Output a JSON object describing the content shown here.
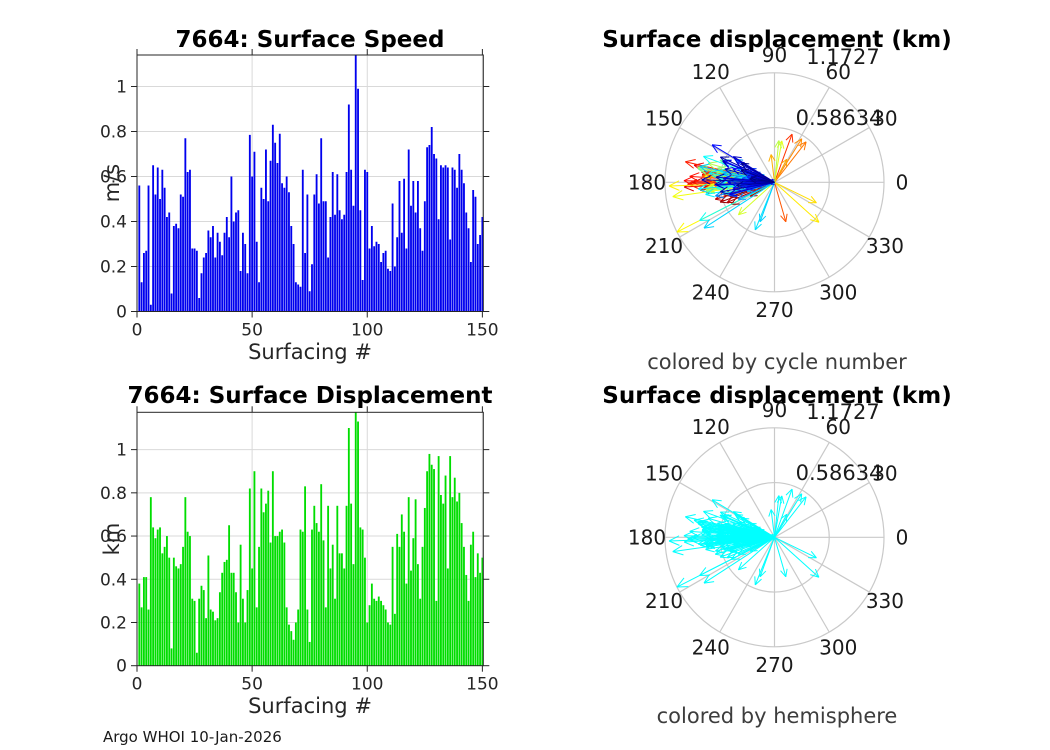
{
  "footer": "Argo WHOI 10-Jan-2026",
  "colors": {
    "speed_bar": "#0000ee",
    "displacement_bar": "#00dd00",
    "hemisphere_arrow": "#00ffff",
    "bar_grid": "#d9d9d9",
    "polar_grid": "#c9c9c9",
    "axis": "#262626",
    "title_text": "#000000",
    "caption_text": "#3d3d3d"
  },
  "chart_data": [
    {
      "id": "surface-speed",
      "type": "bar",
      "title": "7664: Surface Speed",
      "xlabel": "Surfacing #",
      "ylabel": "m/s",
      "xlim": [
        0,
        150.4
      ],
      "ylim": [
        0,
        1.14
      ],
      "xticks": [
        0,
        50,
        100,
        150
      ],
      "xtick_labels": [
        "0",
        "50",
        "100",
        "150"
      ],
      "yticks": [
        0,
        0.2,
        0.4,
        0.6,
        0.8,
        1
      ],
      "ytick_labels": [
        "0",
        "0.2",
        "0.4",
        "0.6",
        "0.8",
        "1"
      ],
      "grid": true,
      "values": [
        0.56,
        0.13,
        0.26,
        0.27,
        0.56,
        0.03,
        0.65,
        0.52,
        0.64,
        0.5,
        0.63,
        0.55,
        0.42,
        0.44,
        0.08,
        0.38,
        0.39,
        0.37,
        0.52,
        0.51,
        0.77,
        0.62,
        0.63,
        0.28,
        0.28,
        0.27,
        0.06,
        0.17,
        0.24,
        0.26,
        0.36,
        0.33,
        0.38,
        0.24,
        0.35,
        0.31,
        0.25,
        0.35,
        0.42,
        0.33,
        0.6,
        0.4,
        0.44,
        0.45,
        0.18,
        0.35,
        0.3,
        0.17,
        0.785,
        0.6,
        0.71,
        0.31,
        0.13,
        0.55,
        0.5,
        0.72,
        0.49,
        0.67,
        0.83,
        0.75,
        0.66,
        0.79,
        0.57,
        0.55,
        0.6,
        0.53,
        0.38,
        0.3,
        0.13,
        0.12,
        0.11,
        0.63,
        0.26,
        0.52,
        0.09,
        0.21,
        0.52,
        0.61,
        0.48,
        0.77,
        0.49,
        0.49,
        0.24,
        0.42,
        0.62,
        0.43,
        0.61,
        0.45,
        0.41,
        0.43,
        0.62,
        0.92,
        0.63,
        0.47,
        1.14,
        0.99,
        0.45,
        0.14,
        0.63,
        0.62,
        0.28,
        0.38,
        0.29,
        0.31,
        0.3,
        0.22,
        0.26,
        0.27,
        0.19,
        0.18,
        0.48,
        0.2,
        0.33,
        0.58,
        0.35,
        0.59,
        0.28,
        0.72,
        0.47,
        0.58,
        0.44,
        0.58,
        0.37,
        0.27,
        0.49,
        0.73,
        0.74,
        0.82,
        0.7,
        0.68,
        0.41,
        0.65,
        0.64,
        0.65,
        0.64,
        0.32,
        0.64,
        0.63,
        0.55,
        0.7,
        0.63,
        0.57,
        0.44,
        0.37,
        0.22,
        0.54,
        0.51,
        0.3,
        0.34,
        0.42
      ]
    },
    {
      "id": "surface-displacement",
      "type": "bar",
      "title": "7664: Surface Displacement",
      "xlabel": "Surfacing #",
      "ylabel": "km",
      "xlim": [
        0,
        150.4
      ],
      "ylim": [
        0,
        1.1727
      ],
      "xticks": [
        0,
        50,
        100,
        150
      ],
      "xtick_labels": [
        "0",
        "50",
        "100",
        "150"
      ],
      "yticks": [
        0,
        0.2,
        0.4,
        0.6,
        0.8,
        1
      ],
      "ytick_labels": [
        "0",
        "0.2",
        "0.4",
        "0.6",
        "0.8",
        "1"
      ],
      "grid": true,
      "values": [
        0.38,
        0.27,
        0.41,
        0.41,
        0.26,
        0.78,
        0.64,
        0.59,
        0.63,
        0.64,
        0.52,
        0.55,
        0.6,
        0.5,
        0.08,
        0.5,
        0.46,
        0.45,
        0.47,
        0.55,
        0.78,
        0.62,
        0.6,
        0.31,
        0.3,
        0.06,
        0.31,
        0.37,
        0.35,
        0.22,
        0.51,
        0.26,
        0.25,
        0.21,
        0.22,
        0.34,
        0.43,
        0.48,
        0.49,
        0.65,
        0.43,
        0.43,
        0.34,
        0.2,
        0.56,
        0.31,
        0.2,
        0.35,
        0.82,
        0.45,
        0.9,
        0.27,
        0.55,
        0.82,
        0.71,
        0.75,
        0.81,
        0.57,
        0.9,
        0.6,
        0.6,
        0.62,
        0.63,
        0.57,
        0.27,
        0.19,
        0.16,
        0.12,
        0.2,
        0.26,
        0.63,
        0.62,
        0.83,
        0.26,
        0.11,
        0.63,
        0.74,
        0.66,
        0.62,
        0.84,
        0.58,
        0.27,
        0.74,
        0.45,
        0.56,
        0.31,
        0.74,
        0.52,
        0.52,
        0.45,
        0.74,
        1.1,
        0.75,
        0.47,
        1.1727,
        1.13,
        0.64,
        0.63,
        0.5,
        0.2,
        0.28,
        0.38,
        0.31,
        0.3,
        0.32,
        0.3,
        0.28,
        0.26,
        0.2,
        0.19,
        0.55,
        0.24,
        0.61,
        0.55,
        0.7,
        0.62,
        0.38,
        0.78,
        0.44,
        0.59,
        0.77,
        0.47,
        0.31,
        0.55,
        0.73,
        0.9,
        0.98,
        0.93,
        0.91,
        0.3,
        0.97,
        0.79,
        0.75,
        0.88,
        0.45,
        0.97,
        0.78,
        0.87,
        0.76,
        0.8,
        0.66,
        0.55,
        0.42,
        0.3,
        0.56,
        0.62,
        0.41,
        0.52,
        0.43,
        0.5
      ]
    },
    {
      "id": "surface-displacement-polar-by-cycle",
      "type": "scatter",
      "projection": "polar-vectors",
      "title": "Surface displacement (km)",
      "caption": "colored by cycle number",
      "color_by": "cycle number",
      "colormap": "jet",
      "rlim": [
        0,
        1.1727
      ],
      "r_ticks": [
        0.58634,
        1.1727
      ],
      "r_tick_labels": [
        "0.58634",
        "1.1727"
      ],
      "theta_tick_labels": [
        "0",
        "30",
        "60",
        "90",
        "120",
        "150",
        "180",
        "210",
        "240",
        "270",
        "300",
        "330"
      ],
      "angles_deg": [
        160,
        172,
        150,
        185,
        168,
        178,
        155,
        190,
        175,
        182,
        148,
        165,
        158,
        195,
        170,
        180,
        152,
        188,
        162,
        176,
        149,
        183,
        157,
        192,
        169,
        179,
        151,
        186,
        173,
        181,
        196,
        166,
        154,
        189,
        171,
        184,
        159,
        177,
        150,
        193,
        205,
        174,
        163,
        187,
        170,
        198,
        156,
        181,
        168,
        250,
        213,
        178,
        248,
        185,
        172,
        190,
        160,
        182,
        207,
        175,
        168,
        186,
        179,
        192,
        165,
        183,
        171,
        188,
        176,
        181,
        158,
        184,
        170,
        190,
        177,
        166,
        187,
        173,
        182,
        169,
        178,
        191,
        164,
        84,
        180,
        174,
        186,
        222,
        172,
        80,
        185,
        188,
        175,
        180,
        207,
        182,
        318,
        178,
        334,
        186,
        176,
        183,
        171,
        187,
        174,
        97,
        62,
        178,
        168,
        185,
        58,
        177,
        172,
        52,
        181,
        169,
        184,
        175,
        286,
        179,
        173,
        186,
        170,
        70,
        178,
        182,
        167,
        181,
        176,
        184,
        179,
        172,
        185,
        168,
        177,
        183,
        174,
        180,
        171,
        186,
        196,
        203,
        188,
        210,
        194,
        200,
        185,
        207,
        192,
        198
      ],
      "radii_km": [
        0.38,
        0.27,
        0.41,
        0.41,
        0.26,
        0.78,
        0.64,
        0.59,
        0.63,
        0.64,
        0.52,
        0.55,
        0.6,
        0.5,
        0.08,
        0.5,
        0.46,
        0.45,
        0.47,
        0.55,
        0.78,
        0.62,
        0.6,
        0.31,
        0.3,
        0.06,
        0.31,
        0.37,
        0.35,
        0.22,
        0.51,
        0.26,
        0.25,
        0.21,
        0.22,
        0.34,
        0.43,
        0.48,
        0.49,
        0.65,
        0.43,
        0.43,
        0.34,
        0.2,
        0.56,
        0.31,
        0.2,
        0.35,
        0.82,
        0.45,
        0.9,
        0.27,
        0.55,
        0.82,
        0.71,
        0.75,
        0.81,
        0.57,
        0.9,
        0.6,
        0.6,
        0.62,
        0.63,
        0.57,
        0.27,
        0.19,
        0.16,
        0.12,
        0.2,
        0.26,
        0.63,
        0.62,
        0.83,
        0.26,
        0.11,
        0.63,
        0.74,
        0.66,
        0.62,
        0.84,
        0.58,
        0.27,
        0.74,
        0.45,
        0.56,
        0.31,
        0.74,
        0.52,
        0.52,
        0.45,
        0.74,
        1.1,
        0.75,
        0.47,
        1.1727,
        1.13,
        0.64,
        0.63,
        0.5,
        0.2,
        0.28,
        0.38,
        0.31,
        0.3,
        0.32,
        0.3,
        0.28,
        0.26,
        0.2,
        0.19,
        0.55,
        0.24,
        0.61,
        0.55,
        0.7,
        0.62,
        0.38,
        0.78,
        0.44,
        0.59,
        0.77,
        0.47,
        0.31,
        0.55,
        0.73,
        0.9,
        0.98,
        0.93,
        0.91,
        0.3,
        0.97,
        0.79,
        0.75,
        0.88,
        0.45,
        0.97,
        0.78,
        0.87,
        0.76,
        0.8,
        0.66,
        0.55,
        0.42,
        0.3,
        0.56,
        0.62,
        0.41,
        0.52,
        0.43,
        0.5
      ]
    },
    {
      "id": "surface-displacement-polar-by-hemisphere",
      "type": "scatter",
      "projection": "polar-vectors",
      "title": "Surface displacement (km)",
      "caption": "colored by hemisphere",
      "color_by": "hemisphere",
      "arrow_color": "#00ffff",
      "rlim": [
        0,
        1.1727
      ],
      "r_ticks": [
        0.58634,
        1.1727
      ],
      "r_tick_labels": [
        "0.58634",
        "1.1727"
      ],
      "theta_tick_labels": [
        "0",
        "30",
        "60",
        "90",
        "120",
        "150",
        "180",
        "210",
        "240",
        "270",
        "300",
        "330"
      ],
      "angles_deg": [
        160,
        172,
        150,
        185,
        168,
        178,
        155,
        190,
        175,
        182,
        148,
        165,
        158,
        195,
        170,
        180,
        152,
        188,
        162,
        176,
        149,
        183,
        157,
        192,
        169,
        179,
        151,
        186,
        173,
        181,
        196,
        166,
        154,
        189,
        171,
        184,
        159,
        177,
        150,
        193,
        205,
        174,
        163,
        187,
        170,
        198,
        156,
        181,
        168,
        250,
        213,
        178,
        248,
        185,
        172,
        190,
        160,
        182,
        207,
        175,
        168,
        186,
        179,
        192,
        165,
        183,
        171,
        188,
        176,
        181,
        158,
        184,
        170,
        190,
        177,
        166,
        187,
        173,
        182,
        169,
        178,
        191,
        164,
        84,
        180,
        174,
        186,
        222,
        172,
        80,
        185,
        188,
        175,
        180,
        207,
        182,
        318,
        178,
        334,
        186,
        176,
        183,
        171,
        187,
        174,
        97,
        62,
        178,
        168,
        185,
        58,
        177,
        172,
        52,
        181,
        169,
        184,
        175,
        286,
        179,
        173,
        186,
        170,
        70,
        178,
        182,
        167,
        181,
        176,
        184,
        179,
        172,
        185,
        168,
        177,
        183,
        174,
        180,
        171,
        186,
        196,
        203,
        188,
        210,
        194,
        200,
        185,
        207,
        192,
        198
      ],
      "radii_km": [
        0.38,
        0.27,
        0.41,
        0.41,
        0.26,
        0.78,
        0.64,
        0.59,
        0.63,
        0.64,
        0.52,
        0.55,
        0.6,
        0.5,
        0.08,
        0.5,
        0.46,
        0.45,
        0.47,
        0.55,
        0.78,
        0.62,
        0.6,
        0.31,
        0.3,
        0.06,
        0.31,
        0.37,
        0.35,
        0.22,
        0.51,
        0.26,
        0.25,
        0.21,
        0.22,
        0.34,
        0.43,
        0.48,
        0.49,
        0.65,
        0.43,
        0.43,
        0.34,
        0.2,
        0.56,
        0.31,
        0.2,
        0.35,
        0.82,
        0.45,
        0.9,
        0.27,
        0.55,
        0.82,
        0.71,
        0.75,
        0.81,
        0.57,
        0.9,
        0.6,
        0.6,
        0.62,
        0.63,
        0.57,
        0.27,
        0.19,
        0.16,
        0.12,
        0.2,
        0.26,
        0.63,
        0.62,
        0.83,
        0.26,
        0.11,
        0.63,
        0.74,
        0.66,
        0.62,
        0.84,
        0.58,
        0.27,
        0.74,
        0.45,
        0.56,
        0.31,
        0.74,
        0.52,
        0.52,
        0.45,
        0.74,
        1.1,
        0.75,
        0.47,
        1.1727,
        1.13,
        0.64,
        0.63,
        0.5,
        0.2,
        0.28,
        0.38,
        0.31,
        0.3,
        0.32,
        0.3,
        0.28,
        0.26,
        0.2,
        0.19,
        0.55,
        0.24,
        0.61,
        0.55,
        0.7,
        0.62,
        0.38,
        0.78,
        0.44,
        0.59,
        0.77,
        0.47,
        0.31,
        0.55,
        0.73,
        0.9,
        0.98,
        0.93,
        0.91,
        0.3,
        0.97,
        0.79,
        0.75,
        0.88,
        0.45,
        0.97,
        0.78,
        0.87,
        0.76,
        0.8,
        0.66,
        0.55,
        0.42,
        0.3,
        0.56,
        0.62,
        0.41,
        0.52,
        0.43,
        0.5
      ]
    }
  ]
}
